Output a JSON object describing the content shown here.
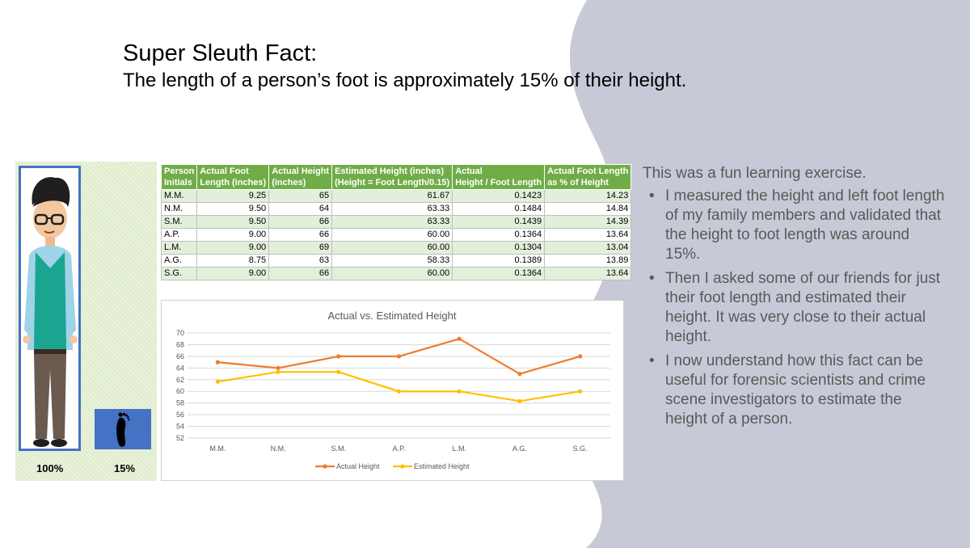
{
  "slide": {
    "title": "Super Sleuth Fact:",
    "subtitle": "The length of a person’s foot is approximately 15% of their height.",
    "colors": {
      "background_wave": "#c7cad6",
      "table_header": "#70ad47",
      "figure_frame": "#4472c4",
      "panel": "#dfeccc"
    }
  },
  "figure": {
    "person_label": "100%",
    "foot_label": "15%",
    "icons": [
      "person-illustration-icon",
      "footprint-icon"
    ]
  },
  "table": {
    "headers": [
      [
        "Person",
        "Initials"
      ],
      [
        "Actual Foot",
        "Length (inches)"
      ],
      [
        "Actual Height",
        "(inches)"
      ],
      [
        "Estimated Height (inches)",
        "(Height = Foot Length/0.15)"
      ],
      [
        "Actual",
        "Height / Foot Length"
      ],
      [
        "Actual Foot Length",
        "as % of Height"
      ]
    ],
    "rows": [
      [
        "M.M.",
        "9.25",
        "65",
        "61.67",
        "0.1423",
        "14.23"
      ],
      [
        "N.M.",
        "9.50",
        "64",
        "63.33",
        "0.1484",
        "14.84"
      ],
      [
        "S.M.",
        "9.50",
        "66",
        "63.33",
        "0.1439",
        "14.39"
      ],
      [
        "A.P.",
        "9.00",
        "66",
        "60.00",
        "0.1364",
        "13.64"
      ],
      [
        "L.M.",
        "9.00",
        "69",
        "60.00",
        "0.1304",
        "13.04"
      ],
      [
        "A.G.",
        "8.75",
        "63",
        "58.33",
        "0.1389",
        "13.89"
      ],
      [
        "S.G.",
        "9.00",
        "66",
        "60.00",
        "0.1364",
        "13.64"
      ]
    ]
  },
  "chart_data": {
    "type": "line",
    "title": "Actual vs. Estimated Height",
    "categories": [
      "M.M.",
      "N.M.",
      "S.M.",
      "A.P.",
      "L.M.",
      "A.G.",
      "S.G."
    ],
    "series": [
      {
        "name": "Actual Height",
        "color": "#ed7d31",
        "values": [
          65,
          64,
          66,
          66,
          69,
          63,
          66
        ]
      },
      {
        "name": "Estimated Height",
        "color": "#ffc000",
        "values": [
          61.67,
          63.33,
          63.33,
          60.0,
          60.0,
          58.33,
          60.0
        ]
      }
    ],
    "ylim": [
      52,
      70
    ],
    "yticks": [
      52,
      54,
      56,
      58,
      60,
      62,
      64,
      66,
      68,
      70
    ],
    "grid": true,
    "legend": "bottom"
  },
  "notes": {
    "intro": "This was a fun learning exercise.",
    "bullets": [
      "I measured the height and left foot length of my family members and validated that the height to foot length was around 15%.",
      "Then I asked some of our friends for just their foot length and estimated their height. It was very close to their actual height.",
      "I now understand how this fact can be useful for forensic scientists and crime scene investigators to estimate the height of a person."
    ]
  }
}
